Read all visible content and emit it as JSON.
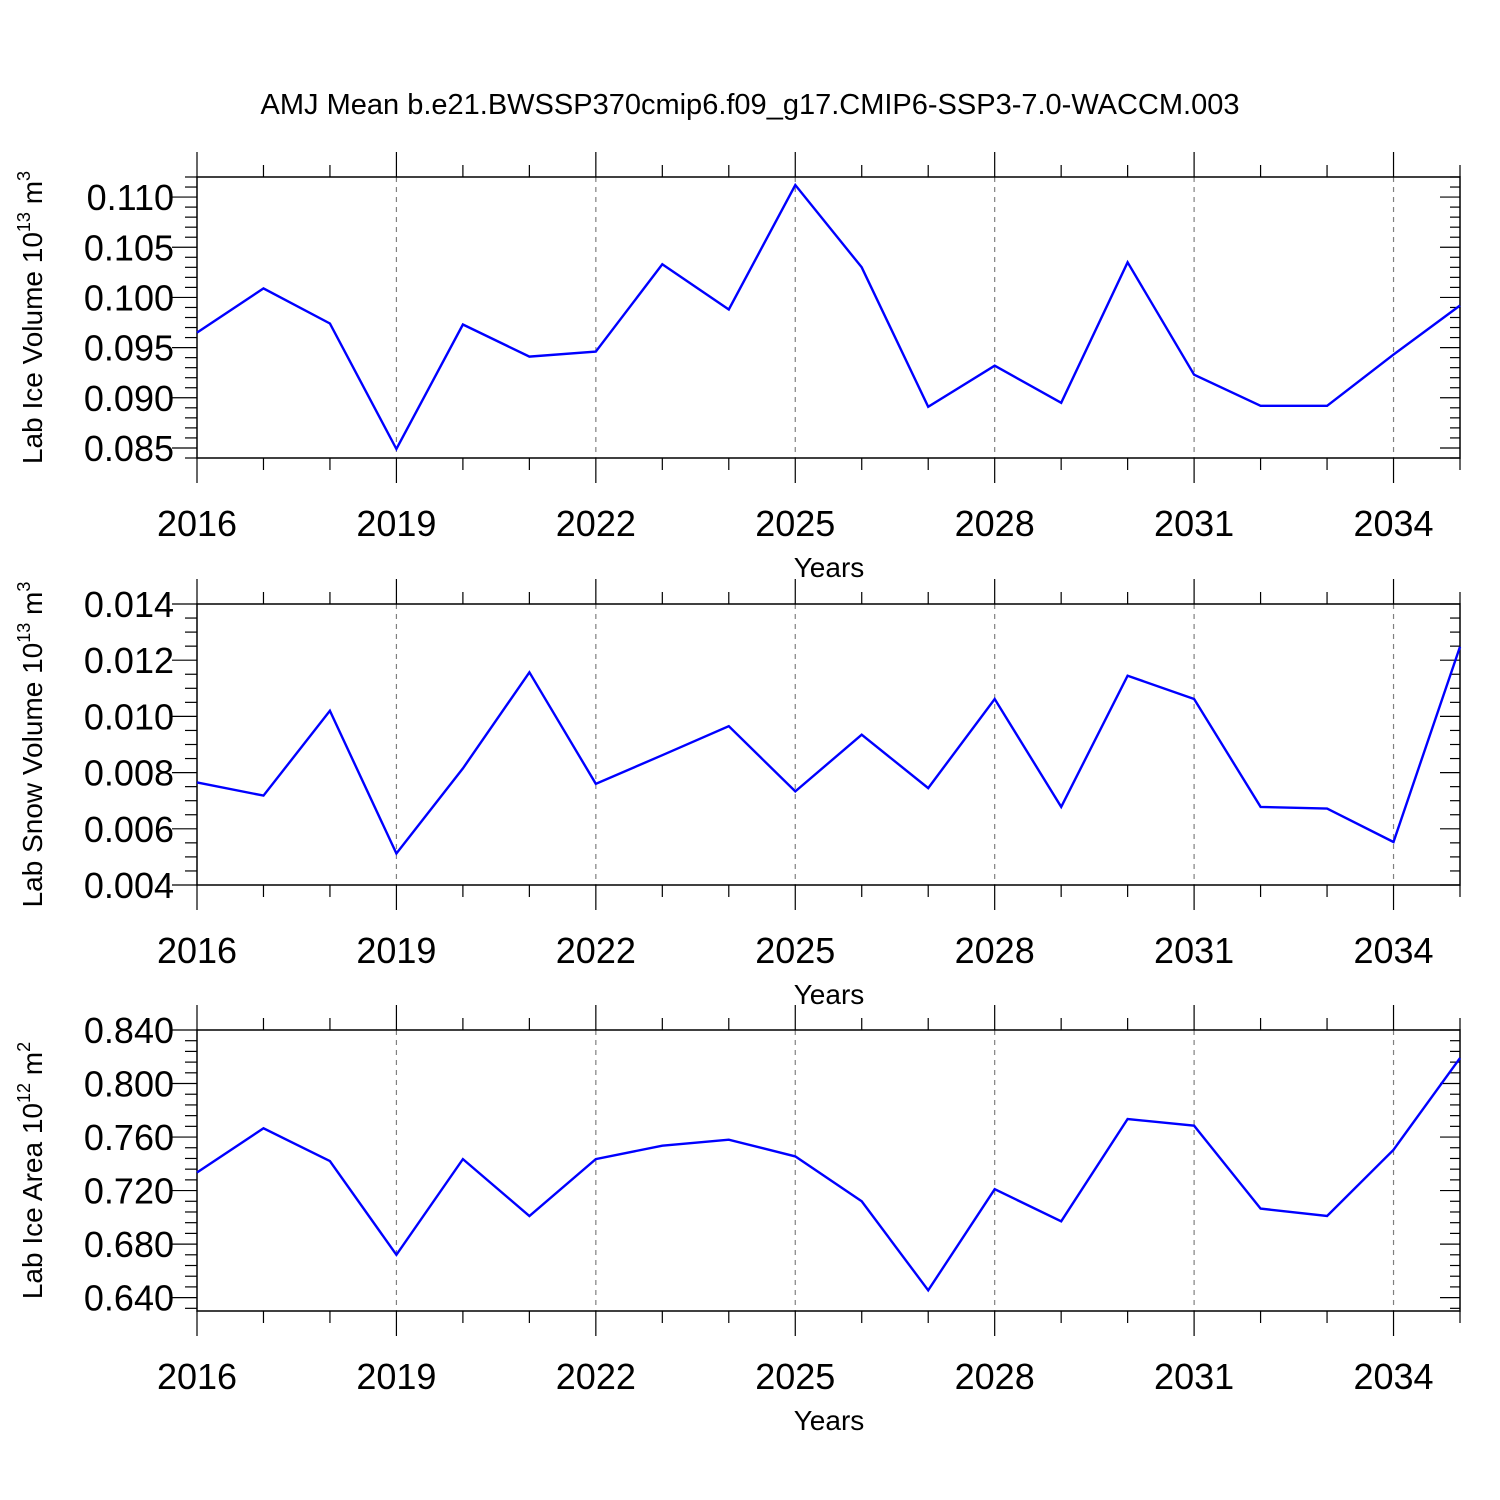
{
  "title": "AMJ Mean b.e21.BWSSP370cmip6.f09_g17.CMIP6-SSP3-7.0-WACCM.003",
  "colors": {
    "line": "#0000ff",
    "frame": "#000000",
    "grid": "#808080"
  },
  "chart_data": [
    {
      "type": "line",
      "xlabel": "Years",
      "ylabel": {
        "text": "Lab Ice Volume 10",
        "exp1": "13",
        "unit": " m",
        "exp2": "3"
      },
      "xlim": [
        2016,
        2035
      ],
      "ylim": [
        0.084,
        0.112
      ],
      "xticks": [
        2016,
        2019,
        2022,
        2025,
        2028,
        2031,
        2034
      ],
      "xtick_labels": [
        "2016",
        "2019",
        "2022",
        "2025",
        "2028",
        "2031",
        "2034"
      ],
      "yticks": [
        0.085,
        0.09,
        0.095,
        0.1,
        0.105,
        0.11
      ],
      "ytick_labels": [
        "0.085",
        "0.090",
        "0.095",
        "0.100",
        "0.105",
        "0.110"
      ],
      "yminor_step": 0.001,
      "grid": "vertical dashed",
      "x": [
        2016,
        2017,
        2018,
        2019,
        2020,
        2021,
        2022,
        2023,
        2024,
        2025,
        2026,
        2027,
        2028,
        2029,
        2030,
        2031,
        2032,
        2033,
        2034,
        2035
      ],
      "values": [
        0.0965,
        0.1009,
        0.0974,
        0.0849,
        0.0973,
        0.0941,
        0.0946,
        0.1033,
        0.0988,
        0.1112,
        0.103,
        0.0891,
        0.0932,
        0.0895,
        0.1035,
        0.0923,
        0.0892,
        0.0892,
        0.0943,
        0.0992
      ]
    },
    {
      "type": "line",
      "xlabel": "Years",
      "ylabel": {
        "text": "Lab Snow Volume 10",
        "exp1": "13",
        "unit": " m",
        "exp2": "3"
      },
      "xlim": [
        2016,
        2035
      ],
      "ylim": [
        0.004,
        0.014
      ],
      "xticks": [
        2016,
        2019,
        2022,
        2025,
        2028,
        2031,
        2034
      ],
      "xtick_labels": [
        "2016",
        "2019",
        "2022",
        "2025",
        "2028",
        "2031",
        "2034"
      ],
      "yticks": [
        0.004,
        0.006,
        0.008,
        0.01,
        0.012,
        0.014
      ],
      "ytick_labels": [
        "0.004",
        "0.006",
        "0.008",
        "0.010",
        "0.012",
        "0.014"
      ],
      "yminor_step": 0.0005,
      "grid": "vertical dashed",
      "x": [
        2016,
        2017,
        2018,
        2019,
        2020,
        2021,
        2022,
        2023,
        2024,
        2025,
        2026,
        2027,
        2028,
        2029,
        2030,
        2031,
        2032,
        2033,
        2034,
        2035
      ],
      "values": [
        0.00765,
        0.00718,
        0.0102,
        0.00512,
        0.00815,
        0.01157,
        0.0076,
        0.00862,
        0.00965,
        0.00733,
        0.00935,
        0.00745,
        0.01062,
        0.00678,
        0.01145,
        0.01062,
        0.00678,
        0.00672,
        0.00553,
        0.01248
      ]
    },
    {
      "type": "line",
      "xlabel": "Years",
      "ylabel": {
        "text": "Lab Ice Area 10",
        "exp1": "12",
        "unit": " m",
        "exp2": "2"
      },
      "xlim": [
        2016,
        2035
      ],
      "ylim": [
        0.63,
        0.84
      ],
      "xticks": [
        2016,
        2019,
        2022,
        2025,
        2028,
        2031,
        2034
      ],
      "xtick_labels": [
        "2016",
        "2019",
        "2022",
        "2025",
        "2028",
        "2031",
        "2034"
      ],
      "yticks": [
        0.64,
        0.68,
        0.72,
        0.76,
        0.8,
        0.84
      ],
      "ytick_labels": [
        "0.640",
        "0.680",
        "0.720",
        "0.760",
        "0.800",
        "0.840"
      ],
      "yminor_step": 0.008,
      "grid": "vertical dashed",
      "x": [
        2016,
        2017,
        2018,
        2019,
        2020,
        2021,
        2022,
        2023,
        2024,
        2025,
        2026,
        2027,
        2028,
        2029,
        2030,
        2031,
        2032,
        2033,
        2034,
        2035
      ],
      "values": [
        0.7335,
        0.7665,
        0.742,
        0.672,
        0.7435,
        0.701,
        0.7435,
        0.7535,
        0.758,
        0.7455,
        0.712,
        0.6455,
        0.721,
        0.697,
        0.7735,
        0.7685,
        0.7065,
        0.701,
        0.7505,
        0.819
      ]
    }
  ]
}
